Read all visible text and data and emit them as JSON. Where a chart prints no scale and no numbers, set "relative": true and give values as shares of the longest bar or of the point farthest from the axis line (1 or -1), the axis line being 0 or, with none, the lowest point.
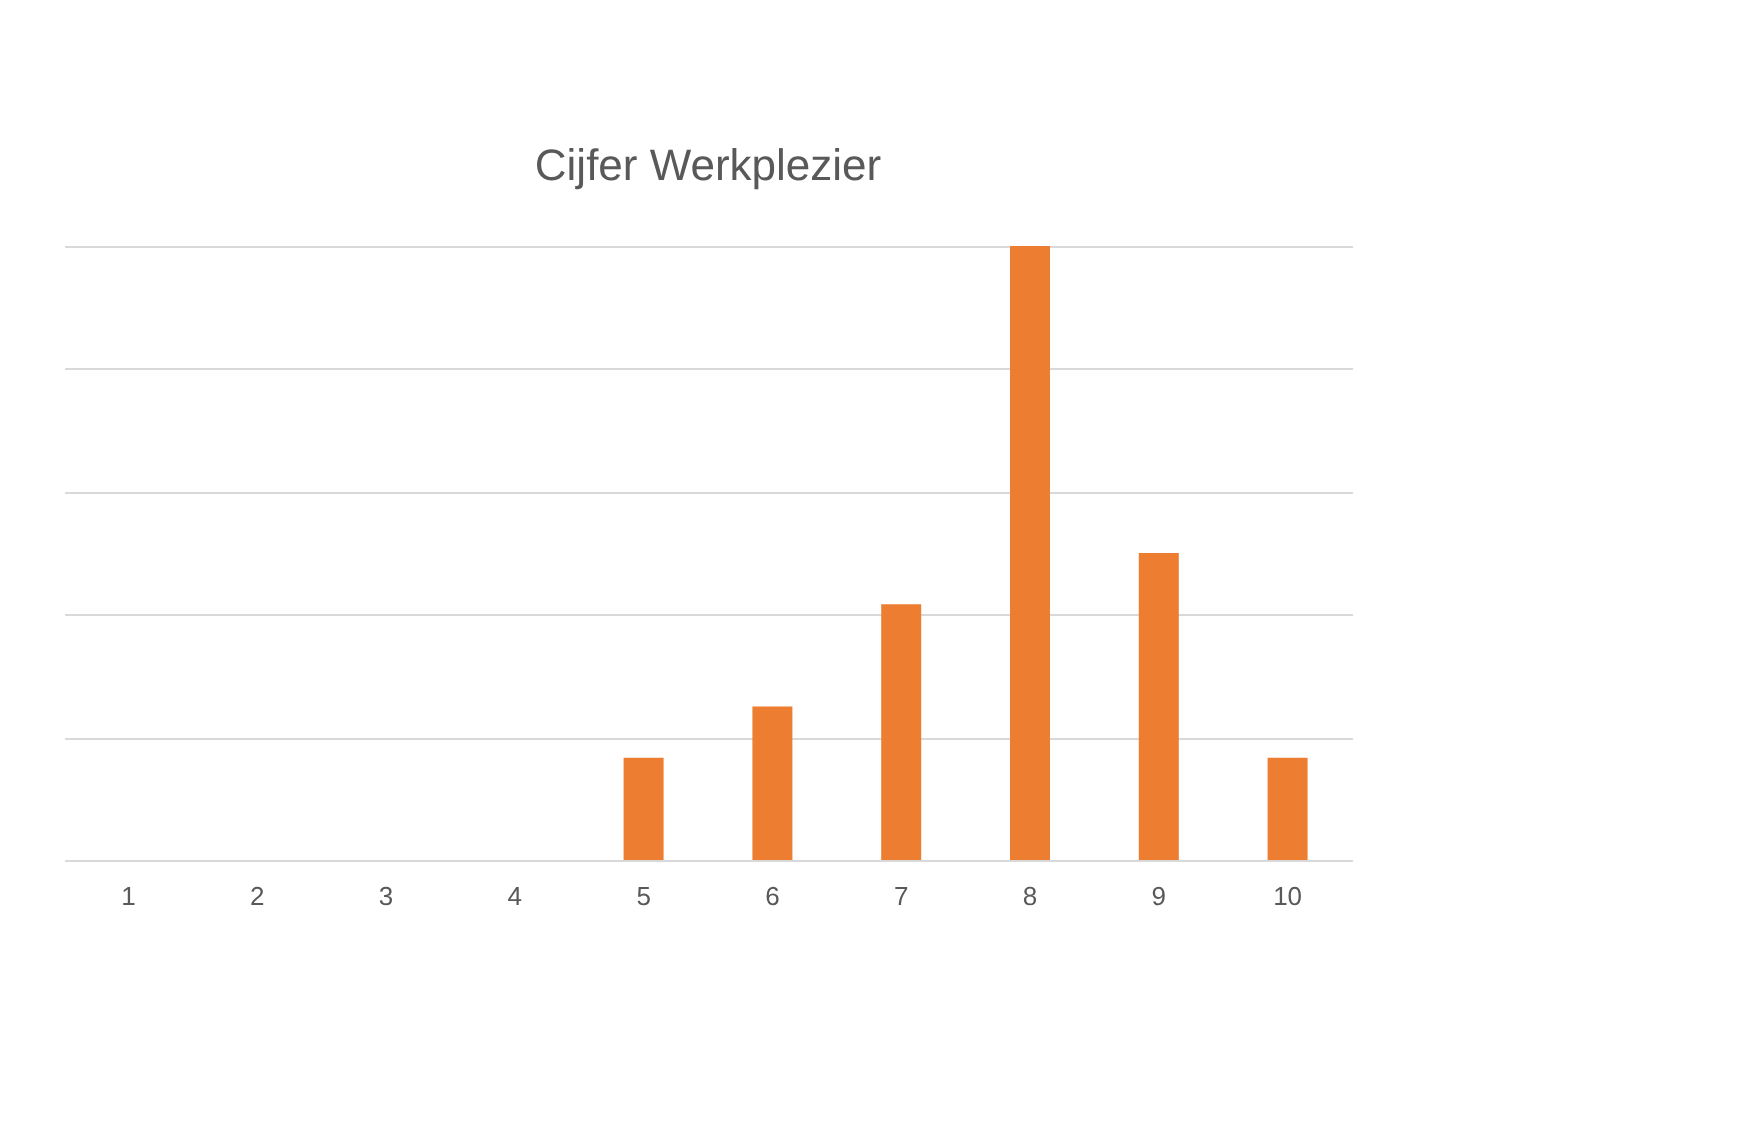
{
  "chart_data": {
    "type": "bar",
    "title": "Cijfer Werkplezier",
    "categories": [
      "1",
      "2",
      "3",
      "4",
      "5",
      "6",
      "7",
      "8",
      "9",
      "10"
    ],
    "values": [
      0,
      0,
      0,
      0,
      0.1667,
      0.25,
      0.4167,
      1,
      0.5,
      0.1667
    ],
    "color": "#ed7d31",
    "relative": true,
    "grid": "y"
  }
}
